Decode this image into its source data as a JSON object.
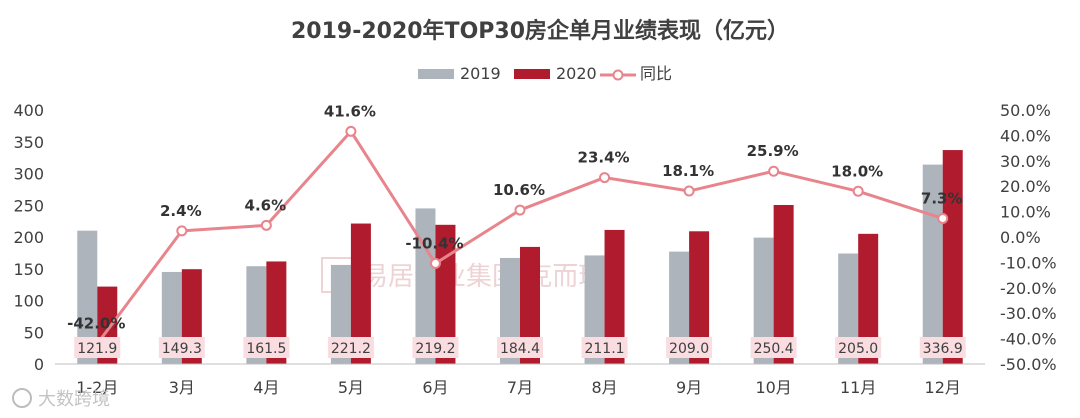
{
  "chart_data": {
    "type": "bar",
    "title": "2019-2020年TOP30房企单月业绩表现（亿元）",
    "categories": [
      "1-2月",
      "3月",
      "4月",
      "5月",
      "6月",
      "7月",
      "8月",
      "9月",
      "10月",
      "11月",
      "12月"
    ],
    "series": [
      {
        "name": "2019",
        "type": "bar",
        "color": "#aeb4bb",
        "values": [
          210,
          145,
          154,
          156,
          245,
          167,
          171,
          177,
          199,
          174,
          314
        ]
      },
      {
        "name": "2020",
        "type": "bar",
        "color": "#b01c2e",
        "values": [
          121.9,
          149.3,
          161.5,
          221.2,
          219.2,
          184.4,
          211.1,
          209.0,
          250.4,
          205.0,
          336.9
        ]
      },
      {
        "name": "同比",
        "type": "line",
        "color": "#e8848c",
        "axis": "right",
        "values": [
          -42.0,
          2.4,
          4.6,
          41.6,
          -10.4,
          10.6,
          23.4,
          18.1,
          25.9,
          18.0,
          7.3
        ]
      }
    ],
    "value_labels_2020": [
      "121.9",
      "149.3",
      "161.5",
      "221.2",
      "219.2",
      "184.4",
      "211.1",
      "209.0",
      "250.4",
      "205.0",
      "336.9"
    ],
    "pct_labels": [
      "-42.0%",
      "2.4%",
      "4.6%",
      "41.6%",
      "-10.4%",
      "10.6%",
      "23.4%",
      "18.1%",
      "25.9%",
      "18.0%",
      "7.3%"
    ],
    "y_left": {
      "min": 0,
      "max": 400,
      "step": 50,
      "ticks": [
        "0",
        "50",
        "100",
        "150",
        "200",
        "250",
        "300",
        "350",
        "400"
      ]
    },
    "y_right": {
      "min": -50,
      "max": 50,
      "step": 10,
      "ticks": [
        "-50.0%",
        "-40.0%",
        "-30.0%",
        "-20.0%",
        "-10.0%",
        "0.0%",
        "10.0%",
        "20.0%",
        "30.0%",
        "40.0%",
        "50.0%"
      ]
    },
    "legend": [
      "2019",
      "2020",
      "同比"
    ],
    "legend_position": "top"
  },
  "watermark": "易居企业集团·克而瑞",
  "watermark2": "大数跨境"
}
